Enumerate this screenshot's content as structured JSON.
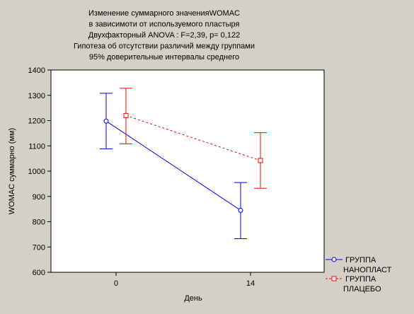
{
  "colors": {
    "background": "#d4d0c8",
    "plot_background": "#ffffff",
    "series_nano": "#0000ff",
    "series_placebo": "#ff0000"
  },
  "chart_data": {
    "type": "line",
    "title_lines": [
      "Изменение суммарного значенияWOMAC",
      "в зависимоти от используемого пластыря",
      "Двухфакторный ANOVA : F=2,39, p= 0,122",
      "Гипотеза об отсутствии различий между группами",
      "95% доверительные интервалы среднего"
    ],
    "xlabel": "День",
    "ylabel": "WOMAC суммарно (мм)",
    "categories": [
      "0",
      "14"
    ],
    "ylim": [
      600,
      1400
    ],
    "yticks": [
      600,
      700,
      800,
      900,
      1000,
      1100,
      1200,
      1300,
      1400
    ],
    "grid": false,
    "legend_position": "bottom-right",
    "series": [
      {
        "name_lines": [
          "ГРУППА",
          "НАНОПЛАСТ"
        ],
        "marker": "circle",
        "line_style": "solid",
        "color": "#0000ff",
        "points": [
          {
            "category": "0",
            "mean": 1198,
            "lower": 1088,
            "upper": 1308
          },
          {
            "category": "14",
            "mean": 845,
            "lower": 733,
            "upper": 955
          }
        ]
      },
      {
        "name_lines": [
          "ГРУППА",
          "ПЛАЦЕБО"
        ],
        "marker": "square",
        "line_style": "dashed",
        "color": "#ff0000",
        "points": [
          {
            "category": "0",
            "mean": 1220,
            "lower": 1108,
            "upper": 1328
          },
          {
            "category": "14",
            "mean": 1042,
            "lower": 932,
            "upper": 1152
          }
        ]
      }
    ]
  }
}
